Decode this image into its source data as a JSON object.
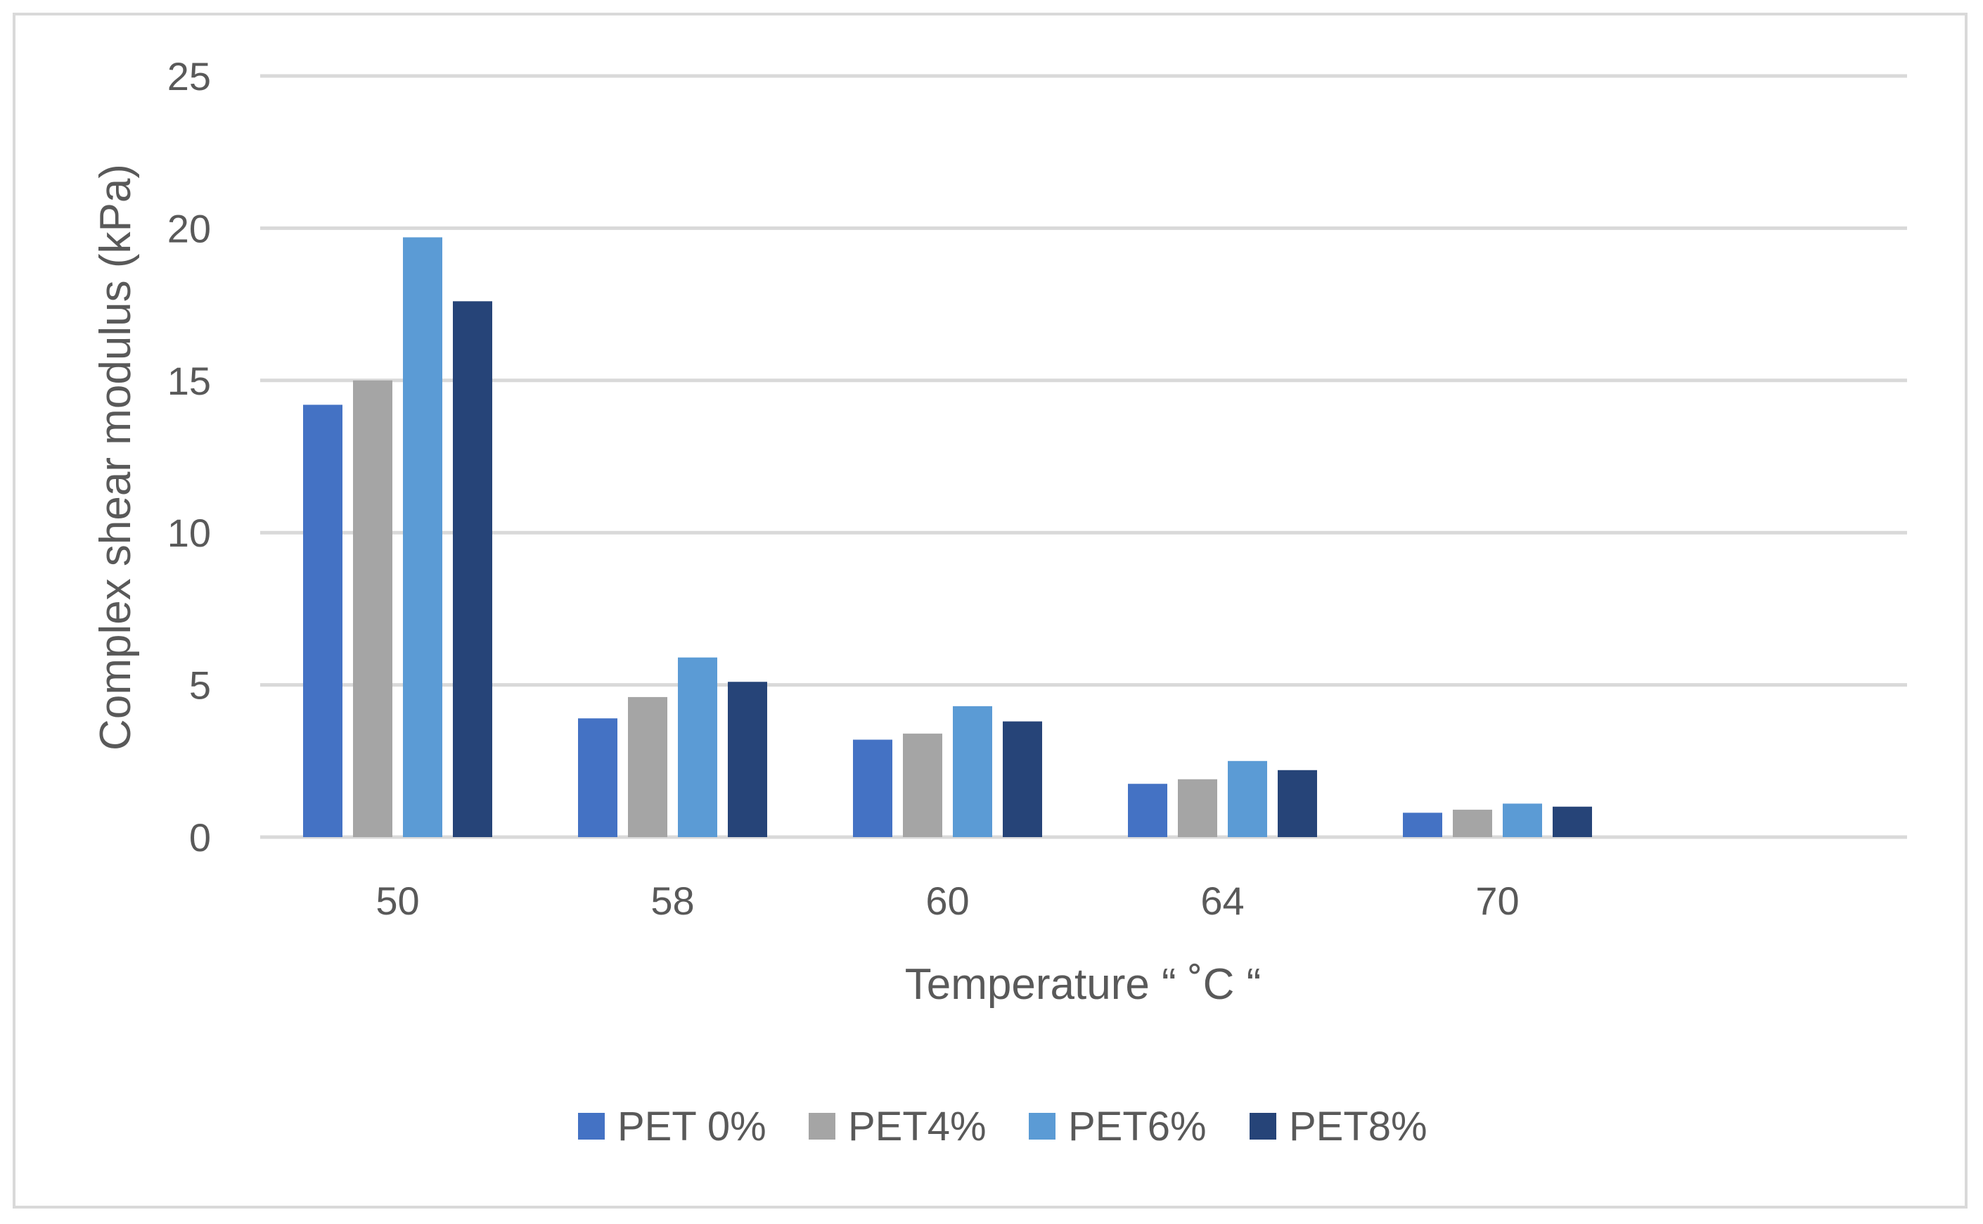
{
  "chart_data": {
    "type": "bar",
    "title": "",
    "xlabel": "Temperature  “ ˚C “",
    "ylabel": "Complex shear modulus (kPa)",
    "categories": [
      "50",
      "58",
      "60",
      "64",
      "70"
    ],
    "ylim": [
      0,
      25
    ],
    "yticks": [
      0,
      5,
      10,
      15,
      20,
      25
    ],
    "grid": true,
    "legend_position": "bottom",
    "series": [
      {
        "name": "PET 0%",
        "color": "#4472c4",
        "values": [
          14.2,
          3.9,
          3.2,
          1.75,
          0.8
        ]
      },
      {
        "name": "PET4%",
        "color": "#a5a5a5",
        "values": [
          15.0,
          4.6,
          3.4,
          1.9,
          0.9
        ]
      },
      {
        "name": "PET6%",
        "color": "#5b9bd5",
        "values": [
          19.7,
          5.9,
          4.3,
          2.5,
          1.1
        ]
      },
      {
        "name": "PET8%",
        "color": "#264478",
        "values": [
          17.6,
          5.1,
          3.8,
          2.2,
          1.0
        ]
      }
    ]
  }
}
